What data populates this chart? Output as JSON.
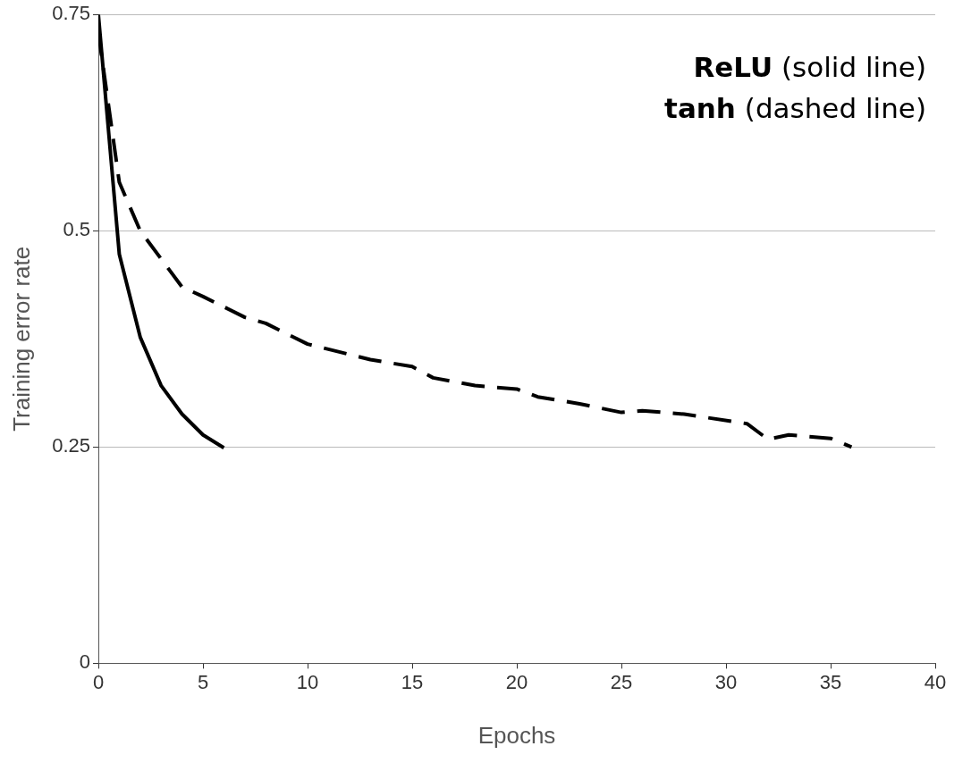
{
  "chart_data": {
    "type": "line",
    "xlabel": "Epochs",
    "ylabel": "Training error rate",
    "xlim": [
      0,
      40
    ],
    "xticks": [
      0,
      5,
      10,
      15,
      20,
      25,
      30,
      35,
      40
    ],
    "ylim": [
      0,
      0.75
    ],
    "yticks": [
      0,
      0.25,
      0.5,
      0.75
    ],
    "grid": "y",
    "legend": false,
    "marker": "none",
    "annotations": [
      "ReLU (solid line)",
      "tanh (dashed line)"
    ],
    "series": [
      {
        "color": "#000000",
        "line_style": "solid",
        "x": [
          0,
          1,
          2,
          3,
          4,
          5,
          6
        ],
        "values": [
          0.75,
          0.473,
          0.377,
          0.321,
          0.288,
          0.264,
          0.249
        ]
      },
      {
        "color": "#000000",
        "line_style": "dashed",
        "x": [
          0,
          1,
          2,
          4,
          5,
          7,
          8,
          10,
          13,
          15,
          16,
          18,
          20,
          21,
          23,
          25,
          26,
          28,
          31,
          32,
          33,
          35,
          36
        ],
        "values": [
          0.729,
          0.556,
          0.5,
          0.435,
          0.424,
          0.4,
          0.393,
          0.369,
          0.351,
          0.343,
          0.33,
          0.321,
          0.317,
          0.308,
          0.3,
          0.29,
          0.292,
          0.288,
          0.277,
          0.259,
          0.264,
          0.26,
          0.25
        ]
      }
    ]
  }
}
